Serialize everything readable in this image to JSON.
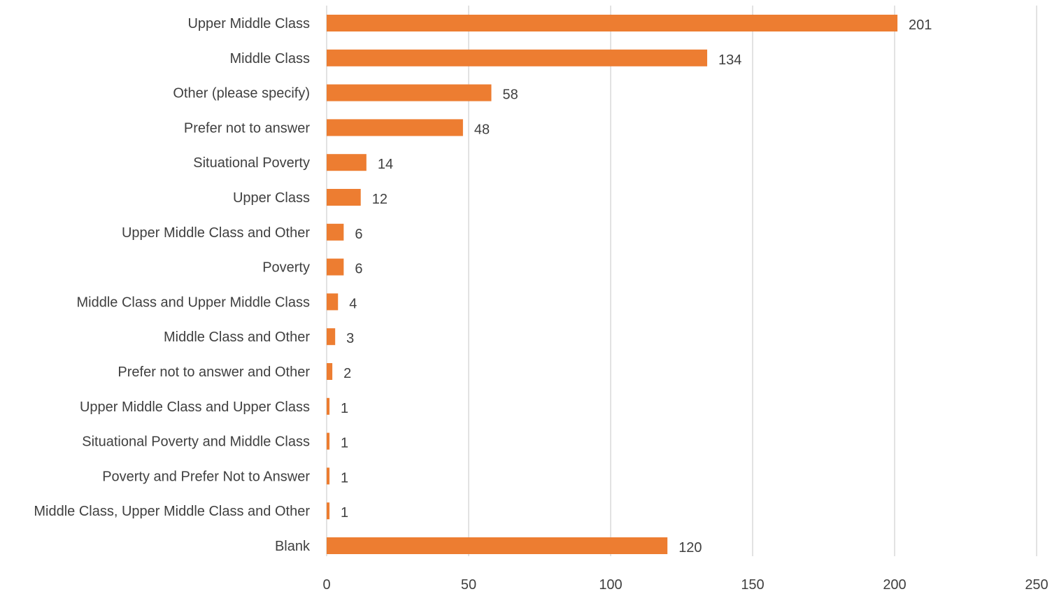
{
  "chart_data": {
    "type": "bar",
    "orientation": "horizontal",
    "categories": [
      "Upper Middle Class",
      "Middle Class",
      "Other (please specify)",
      "Prefer not to answer",
      "Situational Poverty",
      "Upper Class",
      "Upper Middle Class and Other",
      "Poverty",
      "Middle Class and Upper Middle Class",
      "Middle Class and Other",
      "Prefer not to answer and Other",
      "Upper Middle Class and Upper Class",
      "Situational Poverty and Middle Class",
      "Poverty and Prefer Not to Answer",
      "Middle Class, Upper Middle Class and Other",
      "Blank"
    ],
    "values": [
      201,
      134,
      58,
      48,
      14,
      12,
      6,
      6,
      4,
      3,
      2,
      1,
      1,
      1,
      1,
      120
    ],
    "title": "",
    "xlabel": "",
    "ylabel": "",
    "xlim": [
      0,
      250
    ],
    "xticks": [
      0,
      50,
      100,
      150,
      200,
      250
    ],
    "grid": "vertical",
    "legend": "none",
    "data_labels": true,
    "bar_color": "#ED7D31"
  }
}
